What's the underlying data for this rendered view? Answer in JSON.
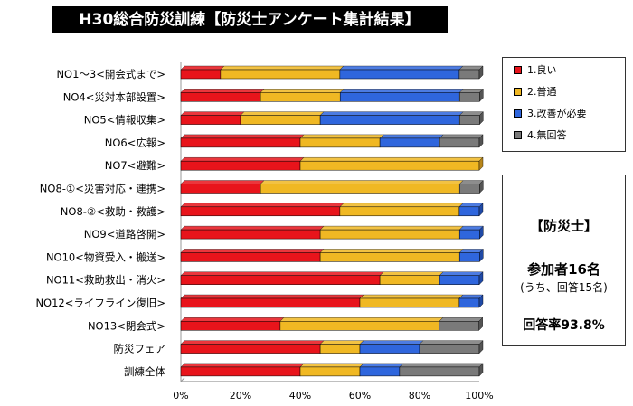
{
  "title": "H30総合防災訓練【防災士アンケート集計結果】",
  "legend": [
    {
      "label": "1.良い",
      "color": "#e8141b"
    },
    {
      "label": "2.普通",
      "color": "#f0b823"
    },
    {
      "label": "3.改善が必要",
      "color": "#2f66dd"
    },
    {
      "label": "4.無回答",
      "color": "#7a7a7a"
    }
  ],
  "info": {
    "title": "【防災士】",
    "participants": "参加者16名",
    "respondents": "(うち、回答15名)",
    "rate": "回答率93.8%"
  },
  "chart_data": {
    "type": "bar",
    "orientation": "horizontal",
    "stacked": "percent",
    "categories": [
      "NO1～3<開会式まで>",
      "NO4<災対本部設置>",
      "NO5<情報収集>",
      "NO6<広報>",
      "NO7<避難>",
      "NO8-①<災害対応・連携>",
      "NO8-②<救助・救護>",
      "NO9<道路啓開>",
      "NO10<物資受入・搬送>",
      "NO11<救助救出・消火>",
      "NO12<ライフライン復旧>",
      "NO13<閉会式>",
      "防災フェア",
      "訓練全体"
    ],
    "series": [
      {
        "name": "1.良い",
        "values": [
          13.3,
          26.7,
          20.0,
          40.0,
          40.0,
          26.7,
          53.3,
          46.7,
          46.7,
          66.7,
          60.0,
          33.3,
          46.7,
          40.0
        ]
      },
      {
        "name": "2.普通",
        "values": [
          40.0,
          26.7,
          26.7,
          26.7,
          60.0,
          66.7,
          40.0,
          46.7,
          46.7,
          20.0,
          33.3,
          53.3,
          13.3,
          20.0
        ]
      },
      {
        "name": "3.改善が必要",
        "values": [
          40.0,
          40.0,
          46.7,
          20.0,
          0,
          0,
          6.7,
          6.7,
          6.7,
          13.3,
          6.7,
          0,
          20.0,
          13.3
        ]
      },
      {
        "name": "4.無回答",
        "values": [
          6.7,
          6.7,
          6.7,
          13.3,
          0,
          6.7,
          0,
          0,
          0,
          0,
          0,
          13.3,
          20.0,
          26.7
        ]
      }
    ],
    "xlim": [
      0,
      100
    ],
    "xticks": [
      "0%",
      "20%",
      "40%",
      "60%",
      "80%",
      "100%"
    ],
    "legend_position": "right",
    "grid": false
  }
}
